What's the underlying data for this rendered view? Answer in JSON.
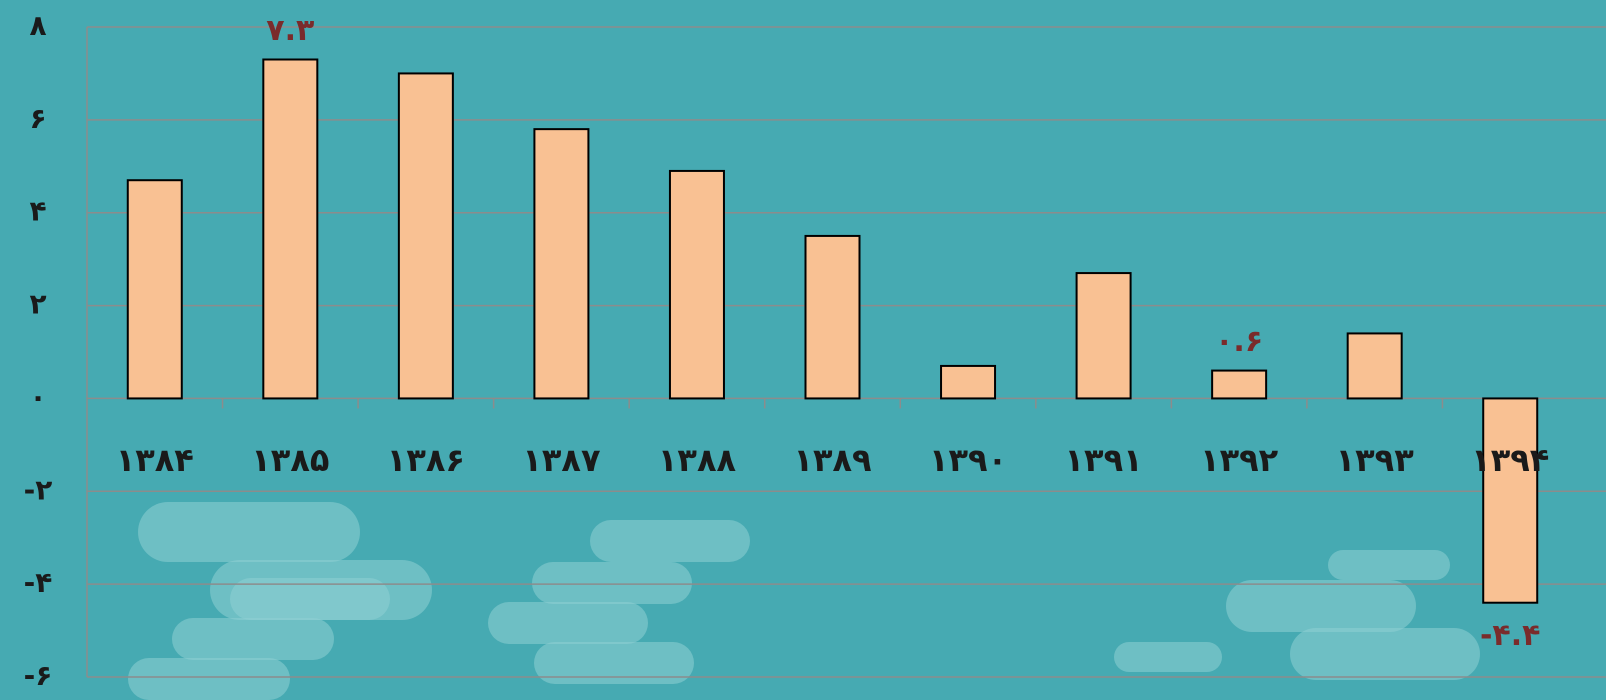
{
  "chart_data": {
    "type": "bar",
    "categories": [
      "۱۳۸۴",
      "۱۳۸۵",
      "۱۳۸۶",
      "۱۳۸۷",
      "۱۳۸۸",
      "۱۳۸۹",
      "۱۳۹۰",
      "۱۳۹۱",
      "۱۳۹۲",
      "۱۳۹۳",
      "۱۳۹۴"
    ],
    "values": [
      4.7,
      7.3,
      7.0,
      5.8,
      4.9,
      3.5,
      0.7,
      2.7,
      0.6,
      1.4,
      -4.4
    ],
    "value_labels": [
      null,
      "۷.۳",
      null,
      null,
      null,
      null,
      null,
      null,
      "۰.۶",
      null,
      "-۴.۴"
    ],
    "color": "#f9c193",
    "ylim": [
      -6,
      8
    ],
    "yticks": [
      {
        "value": -6,
        "label": "-۶"
      },
      {
        "value": -4,
        "label": "-۴"
      },
      {
        "value": -2,
        "label": "-۲"
      },
      {
        "value": 0,
        "label": "۰"
      },
      {
        "value": 2,
        "label": "۲"
      },
      {
        "value": 4,
        "label": "۴"
      },
      {
        "value": 6,
        "label": "۶"
      },
      {
        "value": 8,
        "label": "۸"
      }
    ],
    "grid": true
  }
}
